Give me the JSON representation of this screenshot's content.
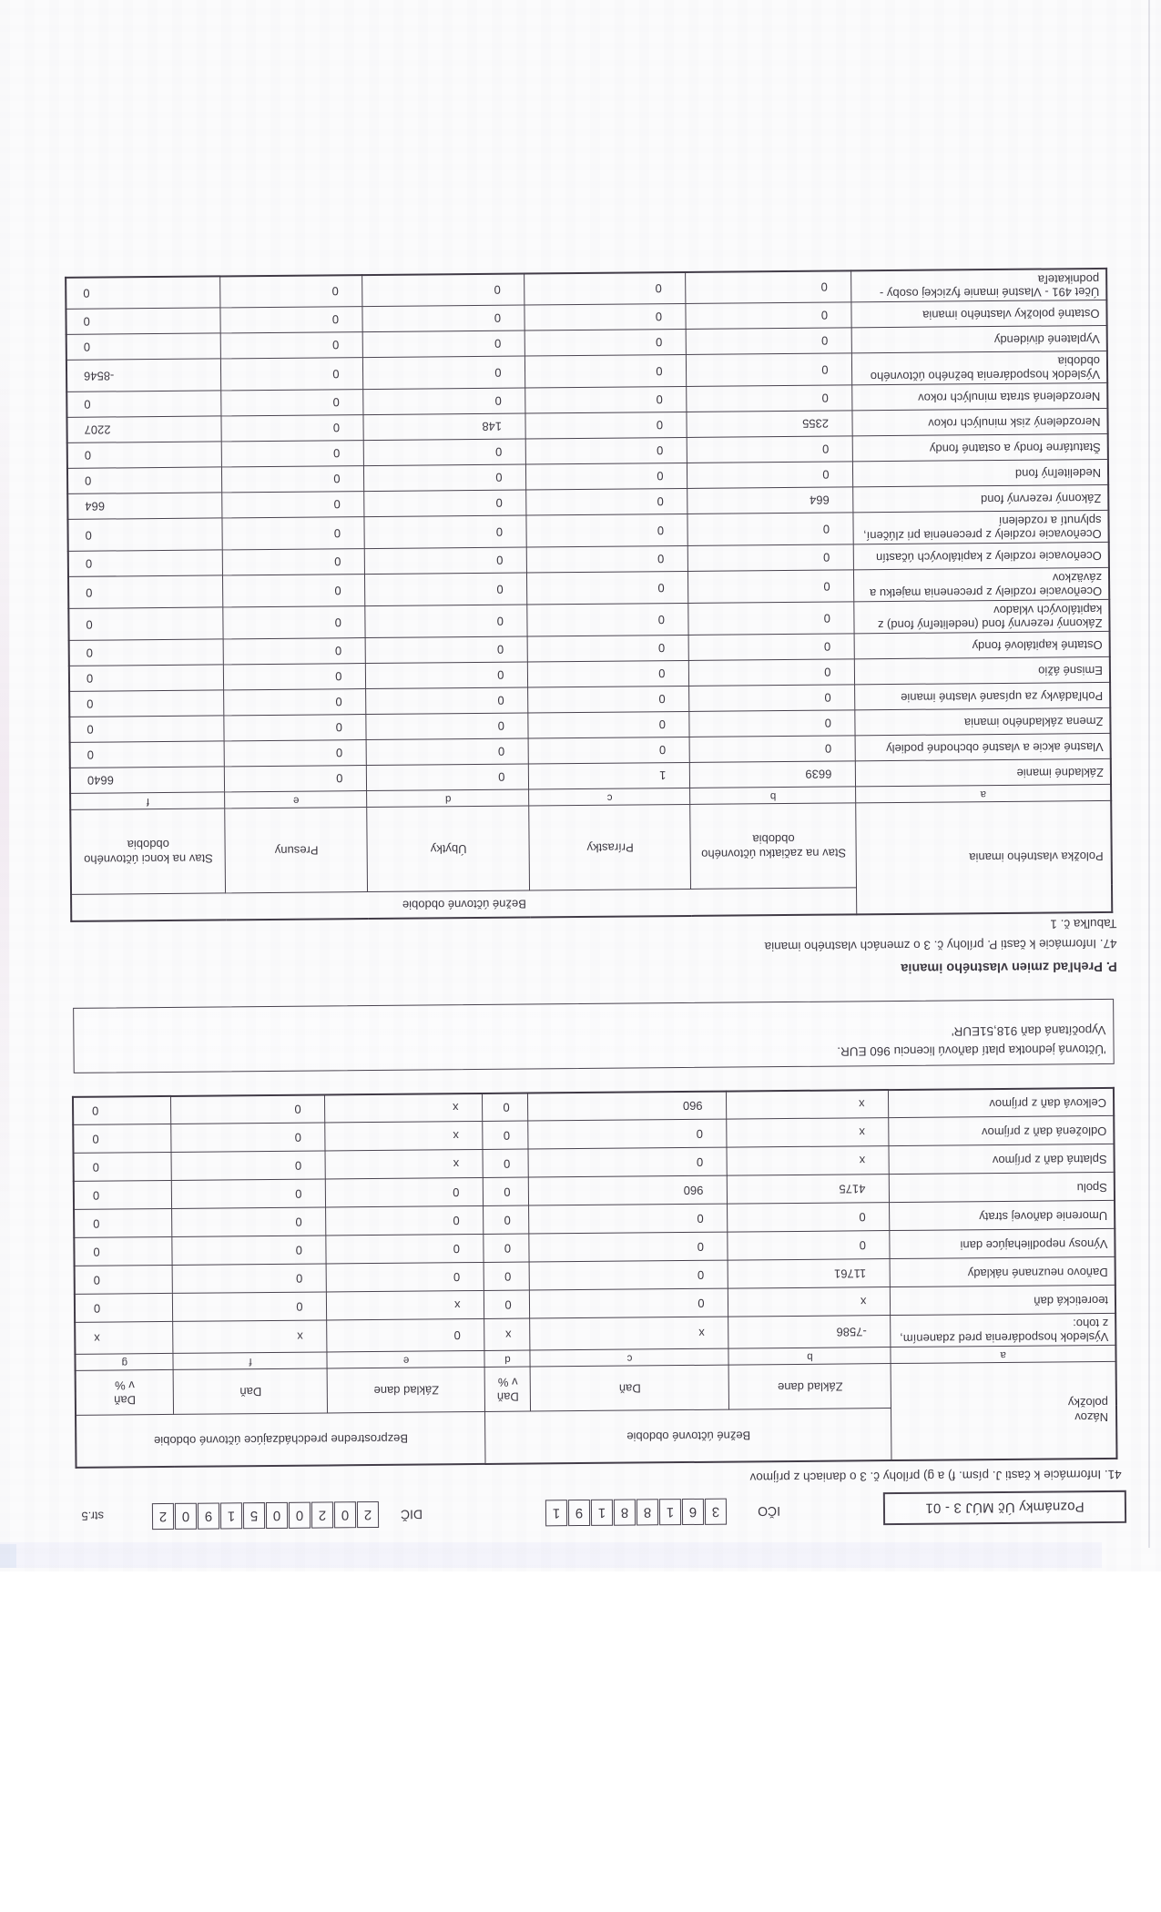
{
  "header": {
    "form_code": "Poznámky Úč MÚJ 3 - 01",
    "ico_label": "IČO",
    "ico_digits": [
      "3",
      "6",
      "1",
      "8",
      "8",
      "1",
      "9",
      "1"
    ],
    "dic_label": "DIČ",
    "dic_digits": [
      "2",
      "0",
      "2",
      "0",
      "0",
      "5",
      "1",
      "9",
      "0",
      "2"
    ],
    "page_label": "str.5"
  },
  "tax": {
    "title": "41. Informácie k časti J. písm. f) a g) prílohy č. 3 o daniach z príjmov",
    "table": {
      "name_header": "Názov\npoložky",
      "period_current": "Bežné účtovné obdobie",
      "period_previous": "Bezprostredne predchádzajúce účtovné obdobie",
      "sub_headers": [
        "Základ dane",
        "Daň",
        "Daň\nv %",
        "Základ dane",
        "Daň",
        "Daň\nv %"
      ],
      "letters": [
        "a",
        "b",
        "c",
        "d",
        "e",
        "f",
        "g"
      ],
      "rows": [
        {
          "label": "Výsledok hospodárenia pred zdanením, z toho:",
          "values": [
            "-7586",
            "x",
            "x",
            "0",
            "x",
            "x"
          ]
        },
        {
          "label": "teoretická daň",
          "values": [
            "x",
            "0",
            "0",
            "x",
            "0",
            "0"
          ]
        },
        {
          "label": "Daňovo neuznané náklady",
          "values": [
            "11761",
            "0",
            "0",
            "0",
            "0",
            "0"
          ]
        },
        {
          "label": "Výnosy nepodliehajúce dani",
          "values": [
            "0",
            "0",
            "0",
            "0",
            "0",
            "0"
          ]
        },
        {
          "label": "Umorenie daňovej straty",
          "values": [
            "0",
            "0",
            "0",
            "0",
            "0",
            "0"
          ]
        },
        {
          "label": "Spolu",
          "values": [
            "4175",
            "960",
            "0",
            "0",
            "0",
            "0"
          ]
        },
        {
          "label": "Splatná daň z príjmov",
          "values": [
            "x",
            "0",
            "0",
            "x",
            "0",
            "0"
          ]
        },
        {
          "label": "Odložená daň z príjmov",
          "values": [
            "x",
            "0",
            "0",
            "x",
            "0",
            "0"
          ]
        },
        {
          "label": "Celková daň z príjmov",
          "values": [
            "x",
            "960",
            "0",
            "x",
            "0",
            "0"
          ]
        }
      ]
    },
    "note_line1": "'Účtovná jednotka platí daňovú licenciu 960 EUR.",
    "note_line2": "Vypočítaná daň 918,51EUR'"
  },
  "equity": {
    "heading": "P. Prehľad zmien vlastného imania",
    "subtitle": "47. Informácie k časti P. prílohy č. 3 o zmenách vlastného imania",
    "table_label": "Tabuľka č. 1",
    "table": {
      "name_header": "Položka vlastného imania",
      "period_header": "Bežné účtovné obdobie",
      "sub_headers": [
        "Stav na začiatku účtovného obdobia",
        "Prírastky",
        "Úbytky",
        "Presuny",
        "Stav na konci účtovného obdobia"
      ],
      "letters": [
        "a",
        "b",
        "c",
        "d",
        "e",
        "f"
      ],
      "rows": [
        {
          "label": "Základné imanie",
          "values": [
            "6639",
            "1",
            "0",
            "0",
            "6640"
          ]
        },
        {
          "label": "Vlastné akcie a vlastné obchodné podiely",
          "values": [
            "0",
            "0",
            "0",
            "0",
            "0"
          ]
        },
        {
          "label": "Zmena základného imania",
          "values": [
            "0",
            "0",
            "0",
            "0",
            "0"
          ]
        },
        {
          "label": "Pohľadávky za upísané vlastné imanie",
          "values": [
            "0",
            "0",
            "0",
            "0",
            "0"
          ]
        },
        {
          "label": "Emisné ážio",
          "values": [
            "0",
            "0",
            "0",
            "0",
            "0"
          ]
        },
        {
          "label": "Ostatné kapitálové fondy",
          "values": [
            "0",
            "0",
            "0",
            "0",
            "0"
          ]
        },
        {
          "label": "Zákonný rezervný fond (nedeliteľný fond) z kapitálových vkladov",
          "values": [
            "0",
            "0",
            "0",
            "0",
            "0"
          ]
        },
        {
          "label": "Oceňovacie rozdiely z precenenia majetku a záväzkov",
          "values": [
            "0",
            "0",
            "0",
            "0",
            "0"
          ]
        },
        {
          "label": "Oceňovacie rozdiely z kapitálových účastín",
          "values": [
            "0",
            "0",
            "0",
            "0",
            "0"
          ]
        },
        {
          "label": "Oceňovacie rozdiely z precenenia pri zlúčení, splynutí a rozdelení",
          "values": [
            "0",
            "0",
            "0",
            "0",
            "0"
          ]
        },
        {
          "label": "Zákonný rezervný fond",
          "values": [
            "664",
            "0",
            "0",
            "0",
            "664"
          ]
        },
        {
          "label": "Nedeliteľný fond",
          "values": [
            "0",
            "0",
            "0",
            "0",
            "0"
          ]
        },
        {
          "label": "Štatutárne fondy a ostatné fondy",
          "values": [
            "0",
            "0",
            "0",
            "0",
            "0"
          ]
        },
        {
          "label": "Nerozdelený zisk minulých rokov",
          "values": [
            "2355",
            "0",
            "148",
            "0",
            "2207"
          ]
        },
        {
          "label": "Nerozdelená strata minulých rokov",
          "values": [
            "0",
            "0",
            "0",
            "0",
            "0"
          ]
        },
        {
          "label": "Výsledok hospodárenia bežného účtovného obdobia",
          "values": [
            "0",
            "0",
            "0",
            "0",
            "-8546"
          ]
        },
        {
          "label": "Vyplatené dividendy",
          "values": [
            "0",
            "0",
            "0",
            "0",
            "0"
          ]
        },
        {
          "label": "Ostatné položky vlastného imania",
          "values": [
            "0",
            "0",
            "0",
            "0",
            "0"
          ]
        },
        {
          "label": "Účet 491 - Vlastné imanie fyzickej osoby - podnikateľa",
          "values": [
            "0",
            "0",
            "0",
            "0",
            "0"
          ]
        }
      ]
    }
  }
}
